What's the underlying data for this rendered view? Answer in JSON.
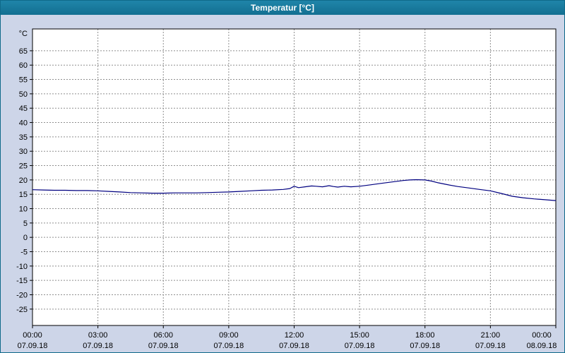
{
  "window": {
    "title": "Temperatur [°C]"
  },
  "colors": {
    "titlebar": "#17799b",
    "background": "#cdd5e8",
    "plot_background": "#ffffff",
    "grid": "#8f8f8f",
    "axis": "#000000",
    "line": "#000080",
    "label": "#000000"
  },
  "chart_data": {
    "type": "line",
    "title": "Temperatur [°C]",
    "unit_label": "°C",
    "ylabel": "Temperatur",
    "xlabel": "",
    "grid": true,
    "legend": "none",
    "ylim": [
      -30.7,
      72.6
    ],
    "yticks": [
      -25,
      -20,
      -15,
      -10,
      -5,
      0,
      5,
      10,
      15,
      20,
      25,
      30,
      35,
      40,
      45,
      50,
      55,
      60,
      65
    ],
    "xlim_hours": [
      0,
      24
    ],
    "xticks": [
      {
        "hour": 0,
        "time": "00:00",
        "date": "07.09.18"
      },
      {
        "hour": 3,
        "time": "03:00",
        "date": "07.09.18"
      },
      {
        "hour": 6,
        "time": "06:00",
        "date": "07.09.18"
      },
      {
        "hour": 9,
        "time": "09:00",
        "date": "07.09.18"
      },
      {
        "hour": 12,
        "time": "12:00",
        "date": "07.09.18"
      },
      {
        "hour": 15,
        "time": "15:00",
        "date": "07.09.18"
      },
      {
        "hour": 18,
        "time": "18:00",
        "date": "07.09.18"
      },
      {
        "hour": 21,
        "time": "21:00",
        "date": "07.09.18"
      },
      {
        "hour": 24,
        "time": "00:00",
        "date": "08.09.18"
      }
    ],
    "series": [
      {
        "name": "Temperatur",
        "color": "#000080",
        "points": [
          [
            0.0,
            16.6
          ],
          [
            0.5,
            16.5
          ],
          [
            1.0,
            16.4
          ],
          [
            1.5,
            16.4
          ],
          [
            2.0,
            16.3
          ],
          [
            2.5,
            16.3
          ],
          [
            3.0,
            16.2
          ],
          [
            3.5,
            16.0
          ],
          [
            4.0,
            15.8
          ],
          [
            4.5,
            15.6
          ],
          [
            5.0,
            15.5
          ],
          [
            5.5,
            15.4
          ],
          [
            6.0,
            15.4
          ],
          [
            6.5,
            15.5
          ],
          [
            7.0,
            15.5
          ],
          [
            7.5,
            15.5
          ],
          [
            8.0,
            15.6
          ],
          [
            8.5,
            15.7
          ],
          [
            9.0,
            15.8
          ],
          [
            9.5,
            16.0
          ],
          [
            10.0,
            16.2
          ],
          [
            10.5,
            16.4
          ],
          [
            11.0,
            16.5
          ],
          [
            11.5,
            16.7
          ],
          [
            11.8,
            17.0
          ],
          [
            12.0,
            17.8
          ],
          [
            12.2,
            17.3
          ],
          [
            12.5,
            17.6
          ],
          [
            12.8,
            17.9
          ],
          [
            13.0,
            17.8
          ],
          [
            13.3,
            17.6
          ],
          [
            13.6,
            18.0
          ],
          [
            13.8,
            17.7
          ],
          [
            14.0,
            17.5
          ],
          [
            14.3,
            17.8
          ],
          [
            14.6,
            17.6
          ],
          [
            15.0,
            17.8
          ],
          [
            15.5,
            18.3
          ],
          [
            16.0,
            18.8
          ],
          [
            16.5,
            19.3
          ],
          [
            17.0,
            19.8
          ],
          [
            17.3,
            20.0
          ],
          [
            17.6,
            20.1
          ],
          [
            18.0,
            20.0
          ],
          [
            18.3,
            19.6
          ],
          [
            18.6,
            19.0
          ],
          [
            19.0,
            18.4
          ],
          [
            19.5,
            17.7
          ],
          [
            20.0,
            17.2
          ],
          [
            20.5,
            16.7
          ],
          [
            21.0,
            16.2
          ],
          [
            21.5,
            15.3
          ],
          [
            22.0,
            14.3
          ],
          [
            22.5,
            13.8
          ],
          [
            23.0,
            13.4
          ],
          [
            23.5,
            13.1
          ],
          [
            24.0,
            12.8
          ]
        ]
      }
    ]
  }
}
